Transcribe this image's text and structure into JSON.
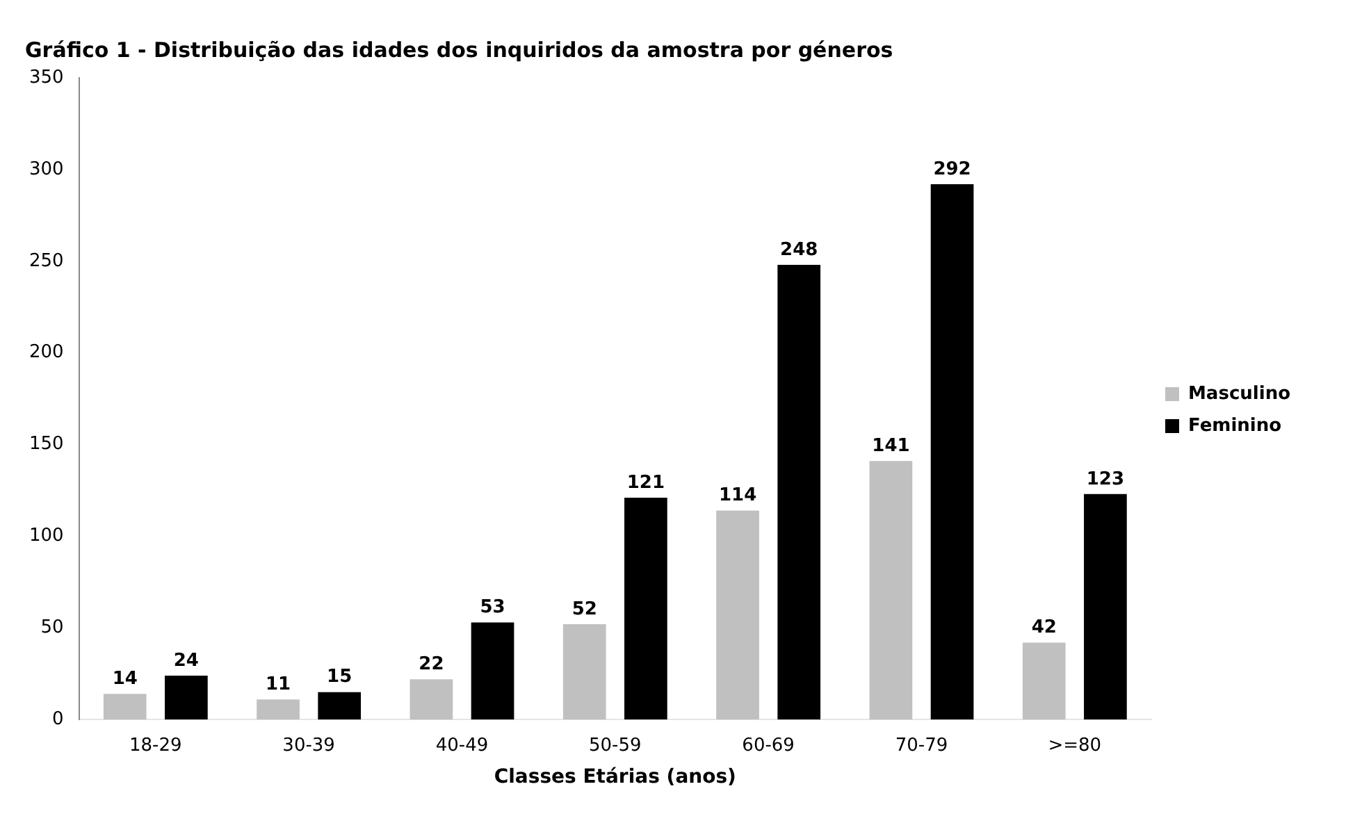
{
  "chart_data": {
    "type": "bar",
    "title": "Gráfico 1 - Distribuição das idades dos inquiridos da amostra por géneros",
    "xlabel": "Classes Etárias (anos)",
    "categories": [
      "18-29",
      "30-39",
      "40-49",
      "50-59",
      "60-69",
      "70-79",
      ">=80"
    ],
    "series": [
      {
        "name": "Masculino",
        "color": "#c0c0c0",
        "values": [
          14,
          11,
          22,
          52,
          114,
          141,
          42
        ]
      },
      {
        "name": "Feminino",
        "color": "#000000",
        "values": [
          24,
          15,
          53,
          121,
          248,
          292,
          123
        ]
      }
    ],
    "ylim": [
      0,
      350
    ],
    "yticks": [
      0,
      50,
      100,
      150,
      200,
      250,
      300,
      350
    ],
    "grid": false,
    "legend": "right",
    "data_labels": true
  }
}
